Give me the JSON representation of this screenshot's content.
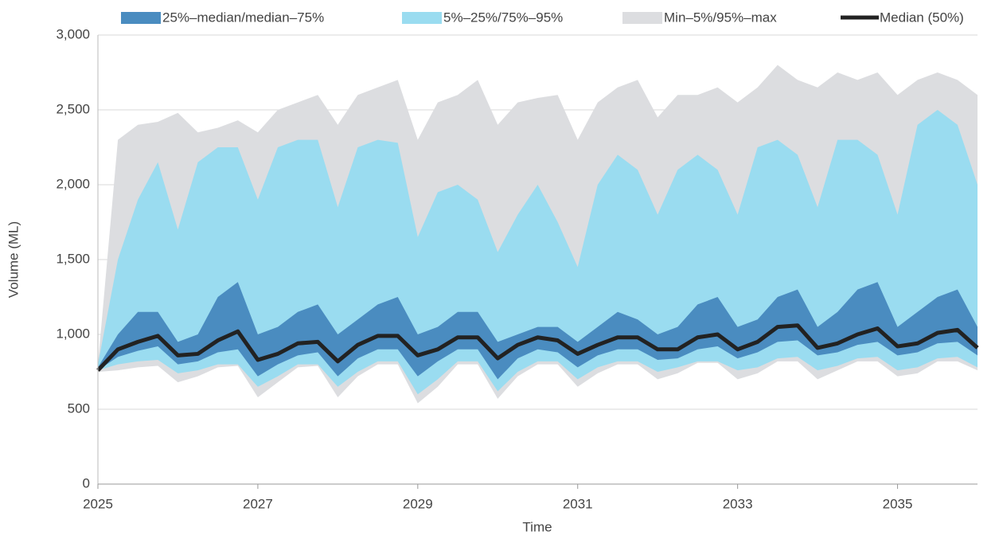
{
  "chart_data": {
    "type": "fan",
    "x_label": "Time",
    "y_label": "Volume (ML)",
    "x": [
      2025,
      2025.25,
      2025.5,
      2025.75,
      2026,
      2026.25,
      2026.5,
      2026.75,
      2027,
      2027.25,
      2027.5,
      2027.75,
      2028,
      2028.25,
      2028.5,
      2028.75,
      2029,
      2029.25,
      2029.5,
      2029.75,
      2030,
      2030.25,
      2030.5,
      2030.75,
      2031,
      2031.25,
      2031.5,
      2031.75,
      2032,
      2032.25,
      2032.5,
      2032.75,
      2033,
      2033.25,
      2033.5,
      2033.75,
      2034,
      2034.25,
      2034.5,
      2034.75,
      2035,
      2035.25,
      2035.5,
      2035.75,
      2036
    ],
    "xlim": [
      2025,
      2036
    ],
    "xticks": [
      2025,
      2027,
      2029,
      2031,
      2033,
      2035
    ],
    "ylim": [
      0,
      3000
    ],
    "yticks": [
      0,
      500,
      {
        "value": 1000,
        "label": "1,000"
      },
      {
        "value": 1500,
        "label": "1,500"
      },
      {
        "value": 2000,
        "label": "2,000"
      },
      {
        "value": 2500,
        "label": "2,500"
      },
      {
        "value": 3000,
        "label": "3,000"
      }
    ],
    "grid": true,
    "series": [
      {
        "name": "25%–median/median–75%",
        "color": "#4a8cc0",
        "low": [
          760,
          850,
          890,
          920,
          800,
          820,
          880,
          900,
          720,
          800,
          860,
          880,
          720,
          840,
          900,
          900,
          720,
          820,
          900,
          900,
          700,
          840,
          900,
          880,
          780,
          860,
          900,
          900,
          830,
          840,
          900,
          920,
          840,
          880,
          950,
          960,
          860,
          880,
          930,
          950,
          860,
          880,
          940,
          950,
          860
        ],
        "high": [
          780,
          1000,
          1150,
          1150,
          950,
          1000,
          1250,
          1350,
          1000,
          1050,
          1150,
          1200,
          1000,
          1100,
          1200,
          1250,
          1000,
          1050,
          1150,
          1150,
          950,
          1000,
          1050,
          1050,
          950,
          1050,
          1150,
          1100,
          1000,
          1050,
          1200,
          1250,
          1050,
          1100,
          1250,
          1300,
          1050,
          1150,
          1300,
          1350,
          1050,
          1150,
          1250,
          1300,
          1050
        ]
      },
      {
        "name": "5%–25%/75%–95%",
        "color": "#9adcf0",
        "low": [
          760,
          800,
          820,
          830,
          740,
          760,
          800,
          800,
          650,
          720,
          800,
          800,
          650,
          750,
          820,
          820,
          600,
          700,
          820,
          820,
          620,
          750,
          820,
          820,
          700,
          780,
          820,
          820,
          750,
          780,
          820,
          820,
          760,
          780,
          840,
          850,
          760,
          790,
          840,
          850,
          760,
          780,
          840,
          850,
          780
        ],
        "high": [
          800,
          1500,
          1900,
          2150,
          1700,
          2150,
          2250,
          2250,
          1900,
          2250,
          2300,
          2300,
          1850,
          2250,
          2300,
          2280,
          1650,
          1950,
          2000,
          1900,
          1550,
          1800,
          2000,
          1750,
          1450,
          2000,
          2200,
          2100,
          1800,
          2100,
          2200,
          2100,
          1800,
          2250,
          2300,
          2200,
          1850,
          2300,
          2300,
          2200,
          1800,
          2400,
          2500,
          2400,
          2000
        ]
      },
      {
        "name": "Min–5%/95%–max",
        "color": "#dcdde0",
        "low": [
          750,
          760,
          780,
          790,
          680,
          720,
          780,
          790,
          580,
          680,
          780,
          790,
          580,
          720,
          800,
          800,
          540,
          650,
          800,
          800,
          570,
          720,
          800,
          800,
          650,
          740,
          800,
          800,
          700,
          740,
          810,
          810,
          700,
          740,
          820,
          820,
          700,
          760,
          820,
          820,
          720,
          740,
          820,
          820,
          760
        ],
        "high": [
          800,
          2300,
          2400,
          2420,
          2480,
          2350,
          2380,
          2430,
          2350,
          2500,
          2550,
          2600,
          2400,
          2600,
          2650,
          2700,
          2300,
          2550,
          2600,
          2700,
          2400,
          2550,
          2580,
          2600,
          2300,
          2550,
          2650,
          2700,
          2450,
          2600,
          2600,
          2650,
          2550,
          2650,
          2800,
          2700,
          2650,
          2750,
          2700,
          2750,
          2600,
          2700,
          2750,
          2700,
          2600
        ]
      },
      {
        "name": "Median (50%)",
        "color": "#222222",
        "values": [
          760,
          900,
          950,
          990,
          860,
          870,
          960,
          1020,
          830,
          870,
          940,
          950,
          820,
          930,
          990,
          990,
          860,
          900,
          980,
          980,
          840,
          930,
          980,
          960,
          870,
          930,
          980,
          980,
          900,
          900,
          980,
          1000,
          900,
          950,
          1050,
          1060,
          910,
          940,
          1000,
          1040,
          920,
          940,
          1010,
          1030,
          910
        ]
      }
    ]
  }
}
